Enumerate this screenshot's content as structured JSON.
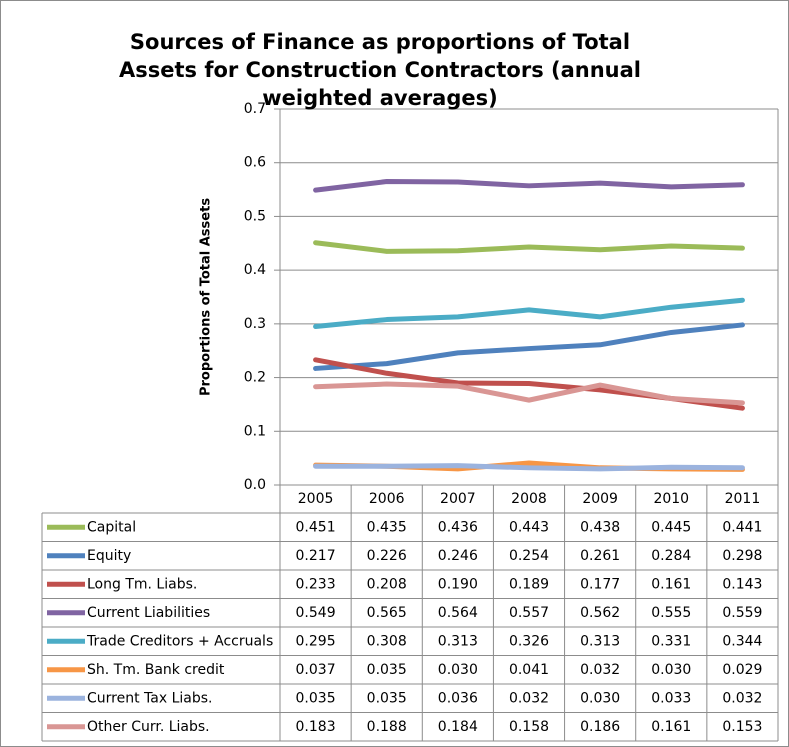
{
  "chart_data": {
    "type": "line",
    "title": "Sources of Finance as proportions of Total Assets for Construction Contractors (annual weighted averages)",
    "y_label": "Proportions of Total Assets",
    "categories": [
      "2005",
      "2006",
      "2007",
      "2008",
      "2009",
      "2010",
      "2011"
    ],
    "ylim": [
      0,
      0.7
    ],
    "yticks": [
      {
        "value": 0,
        "label": "0.0"
      },
      0.1,
      0.2,
      0.3,
      0.4,
      0.5,
      0.6,
      0.7
    ],
    "grid": true,
    "series": [
      {
        "name": "Capital",
        "color": "#9bbb59",
        "values": [
          0.451,
          0.435,
          0.436,
          0.443,
          0.438,
          0.445,
          0.441
        ],
        "value_labels": [
          "0.451",
          "0.435",
          "0.436",
          "0.443",
          "0.438",
          "0.445",
          "0.441"
        ]
      },
      {
        "name": "Equity",
        "color": "#4f81bd",
        "values": [
          0.217,
          0.226,
          0.246,
          0.254,
          0.261,
          0.284,
          0.298
        ],
        "value_labels": [
          "0.217",
          "0.226",
          "0.246",
          "0.254",
          "0.261",
          "0.284",
          "0.298"
        ]
      },
      {
        "name": "Long Tm. Liabs.",
        "color": "#c0504d",
        "values": [
          0.233,
          0.208,
          0.19,
          0.189,
          0.177,
          0.161,
          0.143
        ],
        "value_labels": [
          "0.233",
          "0.208",
          "0.190",
          "0.189",
          "0.177",
          "0.161",
          "0.143"
        ]
      },
      {
        "name": "Current Liabilities",
        "color": "#8064a2",
        "values": [
          0.549,
          0.565,
          0.564,
          0.557,
          0.562,
          0.555,
          0.559
        ],
        "value_labels": [
          "0.549",
          "0.565",
          "0.564",
          "0.557",
          "0.562",
          "0.555",
          "0.559"
        ]
      },
      {
        "name": "Trade Creditors + Accruals",
        "color": "#4bacc6",
        "values": [
          0.295,
          0.308,
          0.313,
          0.326,
          0.313,
          0.331,
          0.344
        ],
        "value_labels": [
          "0.295",
          "0.308",
          "0.313",
          "0.326",
          "0.313",
          "0.331",
          "0.344"
        ]
      },
      {
        "name": "Sh. Tm. Bank credit",
        "color": "#f79646",
        "values": [
          0.037,
          0.035,
          0.03,
          0.041,
          0.032,
          0.03,
          0.029
        ],
        "value_labels": [
          "0.037",
          "0.035",
          "0.030",
          "0.041",
          "0.032",
          "0.030",
          "0.029"
        ]
      },
      {
        "name": "Current Tax Liabs.",
        "color": "#9bb3de",
        "values": [
          0.035,
          0.035,
          0.036,
          0.032,
          0.03,
          0.033,
          0.032
        ],
        "value_labels": [
          "0.035",
          "0.035",
          "0.036",
          "0.032",
          "0.030",
          "0.033",
          "0.032"
        ]
      },
      {
        "name": "Other Curr. Liabs.",
        "color": "#d99694",
        "values": [
          0.183,
          0.188,
          0.184,
          0.158,
          0.186,
          0.161,
          0.153
        ],
        "value_labels": [
          "0.183",
          "0.188",
          "0.184",
          "0.158",
          "0.186",
          "0.161",
          "0.153"
        ]
      }
    ]
  }
}
